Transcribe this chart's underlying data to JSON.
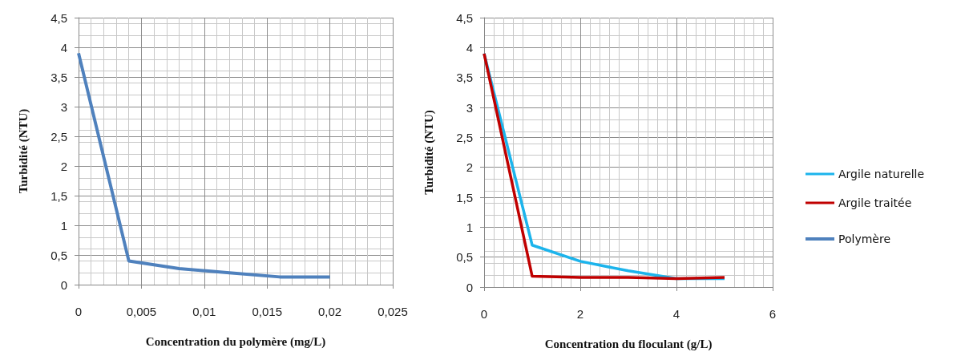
{
  "chart_data": [
    {
      "type": "line",
      "xlabel": "Concentration du polymère (mg/L)",
      "ylabel": "Turbidité (NTU)",
      "x": [
        0,
        0.004,
        0.008,
        0.012,
        0.016,
        0.02
      ],
      "series": [
        {
          "name": "Polymère",
          "color": "#4f81bd",
          "values": [
            3.9,
            0.4,
            0.27,
            0.2,
            0.13,
            0.13
          ]
        }
      ],
      "xlim": [
        0,
        0.025
      ],
      "xticks": [
        0,
        {
          "value": 0.005,
          "label": "0,005"
        },
        {
          "value": 0.01,
          "label": "0,01"
        },
        {
          "value": 0.015,
          "label": "0,015"
        },
        {
          "value": 0.02,
          "label": "0,02"
        },
        {
          "value": 0.025,
          "label": "0,025"
        }
      ],
      "ylim": [
        0,
        4.5
      ],
      "yticks": [
        0,
        {
          "value": 0.5,
          "label": "0,5"
        },
        1,
        {
          "value": 1.5,
          "label": "1,5"
        },
        2,
        {
          "value": 2.5,
          "label": "2,5"
        },
        3,
        {
          "value": 3.5,
          "label": "3,5"
        },
        4,
        {
          "value": 4.5,
          "label": "4,5"
        }
      ],
      "grid": true,
      "legend": "right",
      "marker": "none"
    },
    {
      "type": "line",
      "xlabel": "Concentration du floculant (g/L)",
      "ylabel": "Turbidité (NTU)",
      "x": [
        0,
        1,
        2,
        3,
        4,
        5
      ],
      "series": [
        {
          "name": "Argile naturelle",
          "color": "#1cb4ec",
          "values": [
            3.9,
            0.7,
            0.43,
            0.27,
            0.14,
            0.14
          ]
        },
        {
          "name": "Argile traitée",
          "color": "#c00000",
          "values": [
            3.9,
            0.18,
            0.16,
            0.16,
            0.14,
            0.16
          ]
        }
      ],
      "xlim": [
        0,
        6
      ],
      "xticks": [
        0,
        2,
        4,
        6
      ],
      "ylim": [
        0,
        4.5
      ],
      "yticks": [
        0,
        {
          "value": 0.5,
          "label": "0,5"
        },
        1,
        {
          "value": 1.5,
          "label": "1,5"
        },
        2,
        {
          "value": 2.5,
          "label": "2,5"
        },
        3,
        {
          "value": 3.5,
          "label": "3,5"
        },
        4,
        {
          "value": 4.5,
          "label": "4,5"
        }
      ],
      "grid": true,
      "legend": "right",
      "marker": "none"
    }
  ]
}
